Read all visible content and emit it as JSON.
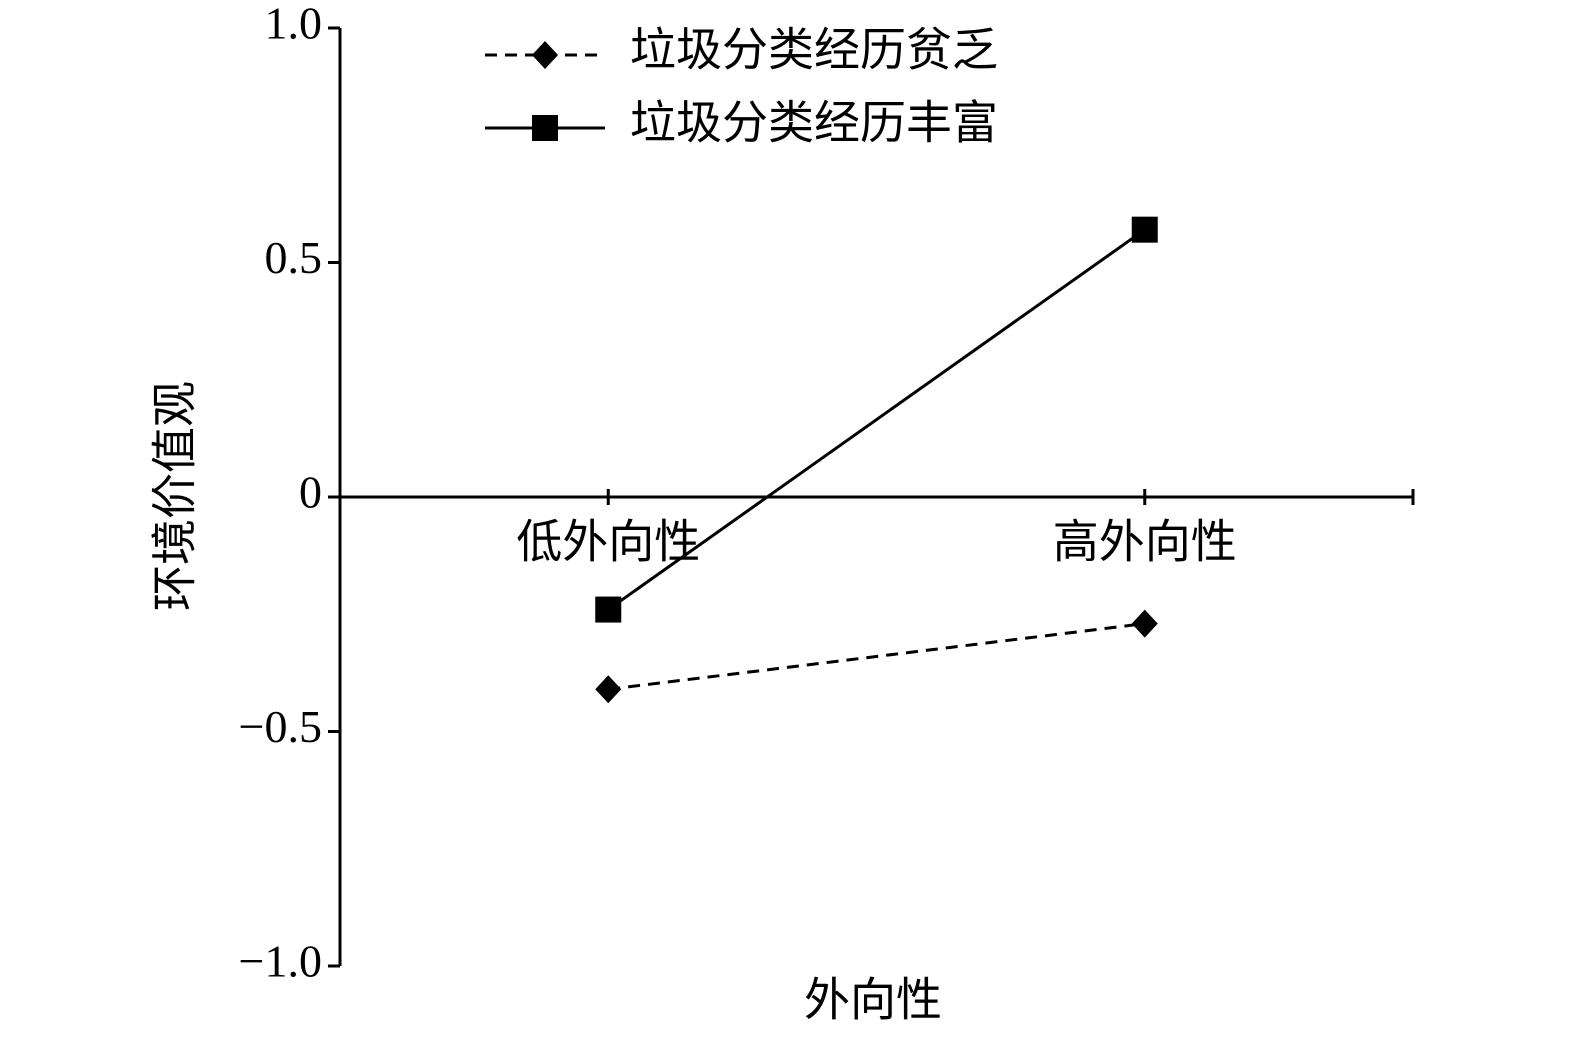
{
  "chart_data": {
    "type": "line",
    "x_label": "外向性",
    "y_label": "环境价值观",
    "categories": [
      "低外向性",
      "高外向性"
    ],
    "series": [
      {
        "name": "垃圾分类经历贫乏",
        "color": "#000000",
        "dashed": true,
        "marker": "diamond",
        "values": [
          -0.41,
          -0.27
        ]
      },
      {
        "name": "垃圾分类经历丰富",
        "color": "#000000",
        "dashed": false,
        "marker": "square",
        "values": [
          -0.24,
          0.57
        ]
      }
    ],
    "ylim": [
      -1.0,
      1.0
    ],
    "yticks": [
      {
        "value": -1.0,
        "label": "−1.0"
      },
      {
        "value": -0.5,
        "label": "−0.5"
      },
      0,
      0.5,
      {
        "value": 1.0,
        "label": "1.0"
      }
    ],
    "grid": false,
    "legend": "top"
  }
}
